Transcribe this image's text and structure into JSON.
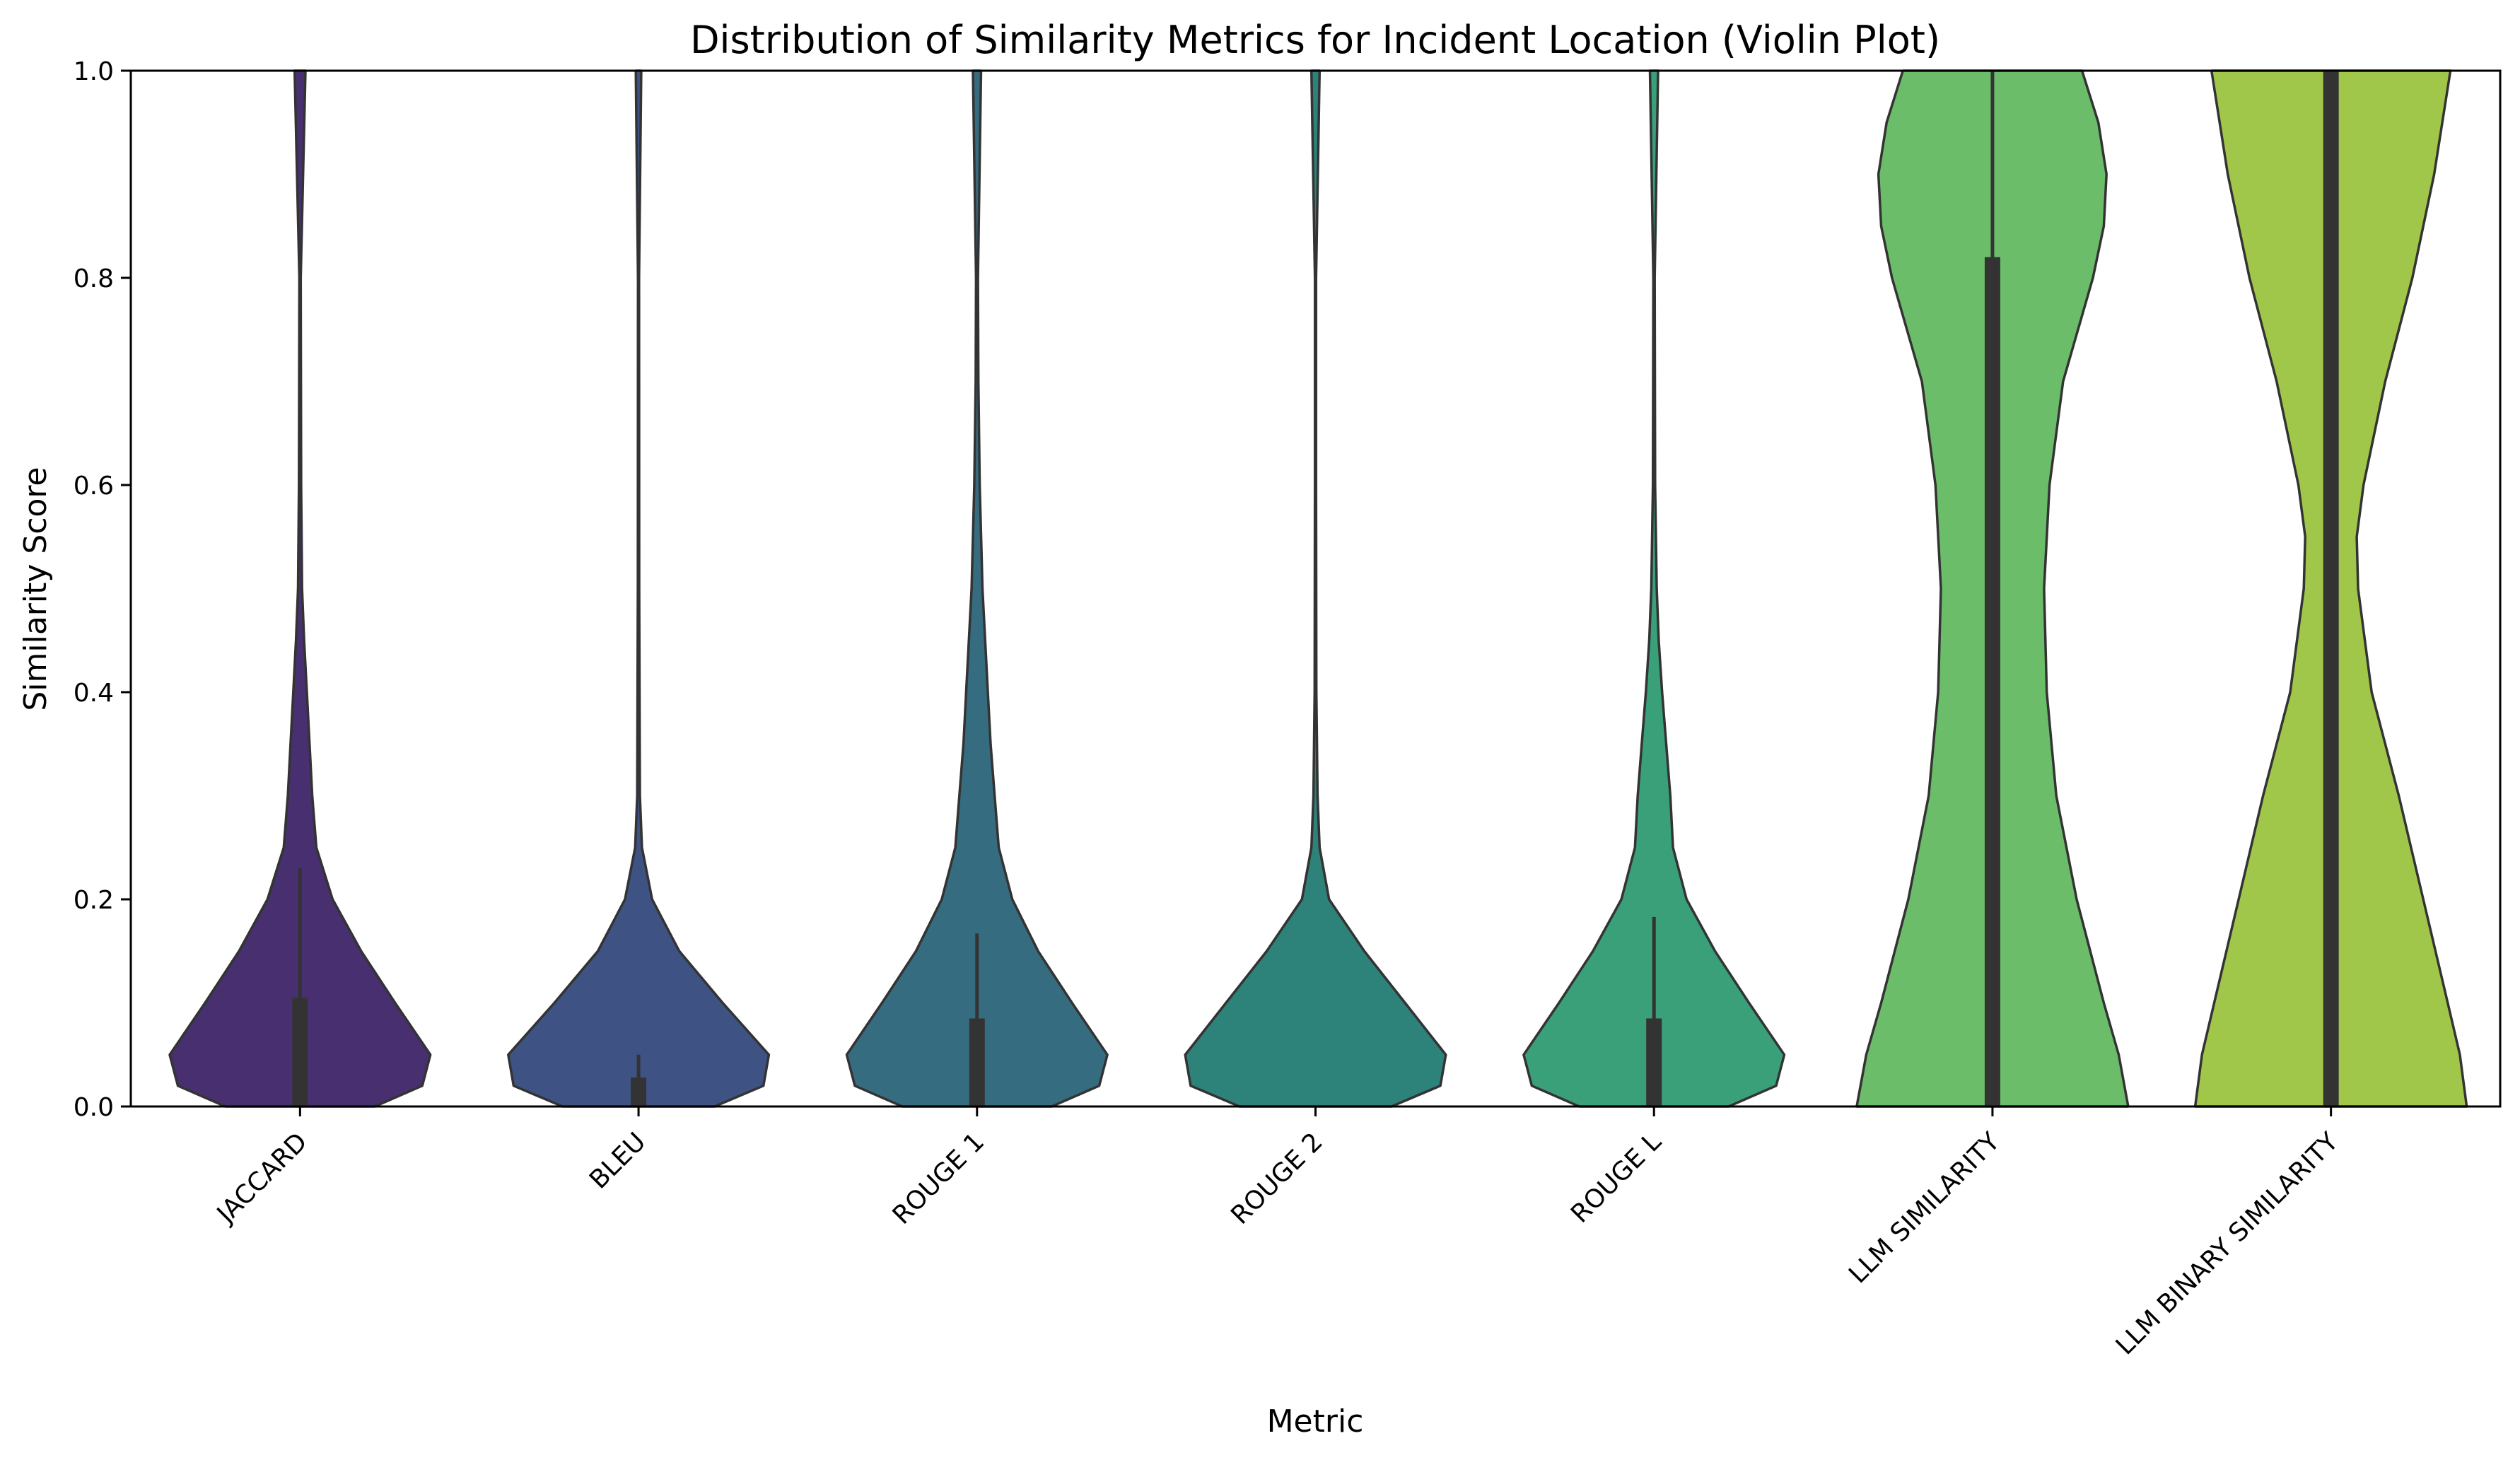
{
  "chart_data": {
    "type": "violin",
    "title": "Distribution of Similarity Metrics for Incident Location (Violin Plot)",
    "xlabel": "Metric",
    "ylabel": "Similarity Score",
    "ylim": [
      0,
      1
    ],
    "yticks": [
      "0.0",
      "0.2",
      "0.4",
      "0.6",
      "0.8",
      "1.0"
    ],
    "grid": false,
    "colors": [
      "#482f70",
      "#3e5384",
      "#366c80",
      "#2d8279",
      "#3aa07a",
      "#6bbd69",
      "#a1c74a"
    ],
    "categories": [
      "JACCARD",
      "BLEU",
      "ROUGE 1",
      "ROUGE 2",
      "ROUGE L",
      "LLM SIMILARITY",
      "LLM BINARY SIMILARITY"
    ],
    "series": [
      {
        "q1": 0.0,
        "median": 0.05,
        "q3": 0.105,
        "whisker_high": 0.23,
        "density": [
          [
            0,
            0.55
          ],
          [
            0.02,
            0.9
          ],
          [
            0.05,
            0.96
          ],
          [
            0.1,
            0.7
          ],
          [
            0.15,
            0.45
          ],
          [
            0.2,
            0.24
          ],
          [
            0.25,
            0.12
          ],
          [
            0.3,
            0.09
          ],
          [
            0.35,
            0.07
          ],
          [
            0.4,
            0.05
          ],
          [
            0.45,
            0.03
          ],
          [
            0.5,
            0.015
          ],
          [
            0.6,
            0.008
          ],
          [
            0.8,
            0.005
          ],
          [
            1.0,
            0.04
          ]
        ]
      },
      {
        "q1": 0.0,
        "median": 0.0,
        "q3": 0.028,
        "whisker_high": 0.05,
        "density": [
          [
            0,
            0.56
          ],
          [
            0.02,
            0.92
          ],
          [
            0.05,
            0.96
          ],
          [
            0.1,
            0.62
          ],
          [
            0.15,
            0.3
          ],
          [
            0.2,
            0.1
          ],
          [
            0.25,
            0.025
          ],
          [
            0.3,
            0.01
          ],
          [
            0.5,
            0.005
          ],
          [
            0.8,
            0.004
          ],
          [
            1.0,
            0.02
          ]
        ]
      },
      {
        "q1": 0.0,
        "median": 0.05,
        "q3": 0.085,
        "whisker_high": 0.167,
        "density": [
          [
            0,
            0.55
          ],
          [
            0.02,
            0.9
          ],
          [
            0.05,
            0.96
          ],
          [
            0.1,
            0.7
          ],
          [
            0.15,
            0.45
          ],
          [
            0.2,
            0.26
          ],
          [
            0.25,
            0.16
          ],
          [
            0.3,
            0.13
          ],
          [
            0.35,
            0.1
          ],
          [
            0.4,
            0.08
          ],
          [
            0.5,
            0.04
          ],
          [
            0.6,
            0.02
          ],
          [
            0.7,
            0.01
          ],
          [
            0.8,
            0.007
          ],
          [
            1.0,
            0.03
          ]
        ]
      },
      {
        "q1": 0.0,
        "median": 0.0,
        "q3": 0.0,
        "whisker_high": 0.0,
        "density": [
          [
            0,
            0.56
          ],
          [
            0.02,
            0.92
          ],
          [
            0.05,
            0.96
          ],
          [
            0.1,
            0.66
          ],
          [
            0.15,
            0.36
          ],
          [
            0.2,
            0.1
          ],
          [
            0.25,
            0.03
          ],
          [
            0.3,
            0.015
          ],
          [
            0.4,
            0.006
          ],
          [
            0.6,
            0.004
          ],
          [
            0.8,
            0.004
          ],
          [
            1.0,
            0.03
          ]
        ]
      },
      {
        "q1": 0.0,
        "median": 0.05,
        "q3": 0.085,
        "whisker_high": 0.183,
        "density": [
          [
            0,
            0.55
          ],
          [
            0.02,
            0.9
          ],
          [
            0.05,
            0.96
          ],
          [
            0.1,
            0.7
          ],
          [
            0.15,
            0.45
          ],
          [
            0.2,
            0.24
          ],
          [
            0.25,
            0.14
          ],
          [
            0.3,
            0.12
          ],
          [
            0.35,
            0.09
          ],
          [
            0.4,
            0.06
          ],
          [
            0.45,
            0.035
          ],
          [
            0.5,
            0.02
          ],
          [
            0.6,
            0.008
          ],
          [
            0.8,
            0.005
          ],
          [
            1.0,
            0.03
          ]
        ]
      },
      {
        "q1": 0.0,
        "median": 0.45,
        "q3": 0.82,
        "whisker_high": 1.0,
        "density": [
          [
            0,
            1.0
          ],
          [
            0.05,
            0.93
          ],
          [
            0.1,
            0.82
          ],
          [
            0.2,
            0.62
          ],
          [
            0.3,
            0.47
          ],
          [
            0.4,
            0.4
          ],
          [
            0.5,
            0.38
          ],
          [
            0.6,
            0.42
          ],
          [
            0.7,
            0.52
          ],
          [
            0.8,
            0.74
          ],
          [
            0.85,
            0.82
          ],
          [
            0.9,
            0.84
          ],
          [
            0.95,
            0.78
          ],
          [
            1.0,
            0.66
          ]
        ]
      },
      {
        "q1": 0.0,
        "median": 1.0,
        "q3": 1.0,
        "whisker_high": 1.0,
        "density": [
          [
            0,
            1.0
          ],
          [
            0.05,
            0.95
          ],
          [
            0.1,
            0.86
          ],
          [
            0.2,
            0.68
          ],
          [
            0.3,
            0.5
          ],
          [
            0.4,
            0.3
          ],
          [
            0.5,
            0.2
          ],
          [
            0.55,
            0.19
          ],
          [
            0.6,
            0.24
          ],
          [
            0.7,
            0.4
          ],
          [
            0.8,
            0.6
          ],
          [
            0.9,
            0.76
          ],
          [
            1.0,
            0.88
          ]
        ]
      }
    ]
  }
}
